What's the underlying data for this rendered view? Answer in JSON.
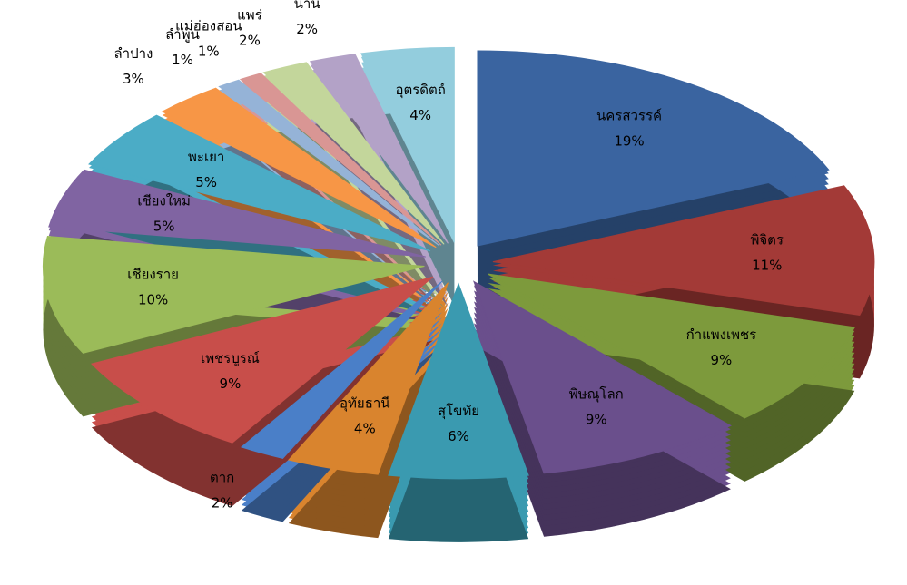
{
  "chart_data": {
    "type": "pie",
    "categories": [
      "นครสวรรค์",
      "พิจิตร",
      "กำแพงเพชร",
      "พิษณุโลก",
      "สุโขทัย",
      "อุทัยธานี",
      "ตาก",
      "เพชรบูรณ์",
      "เชียงราย",
      "เชียงใหม่",
      "พะเยา",
      "ลำปาง",
      "ลำพูน",
      "แม่ฮ่องสอน",
      "แพร่",
      "น่าน",
      "อุตรดิตถ์"
    ],
    "values": [
      19,
      11,
      9,
      9,
      6,
      4,
      2,
      9,
      10,
      5,
      5,
      3,
      1,
      1,
      2,
      2,
      4
    ],
    "value_labels": [
      "19%",
      "11%",
      "9%",
      "9%",
      "6%",
      "4%",
      "2%",
      "9%",
      "10%",
      "5%",
      "5%",
      "3%",
      "1%",
      "1%",
      "2%",
      "2%",
      "4%"
    ],
    "colors": [
      "#3a64a0",
      "#a33a37",
      "#7d9a3c",
      "#6a4f8c",
      "#3a9ab0",
      "#d9842e",
      "#4a7fc8",
      "#c84e4a",
      "#9bbb59",
      "#8064a2",
      "#4bacc6",
      "#f79646",
      "#95b3d7",
      "#d99694",
      "#c3d69b",
      "#b3a2c7",
      "#93cddd"
    ]
  }
}
